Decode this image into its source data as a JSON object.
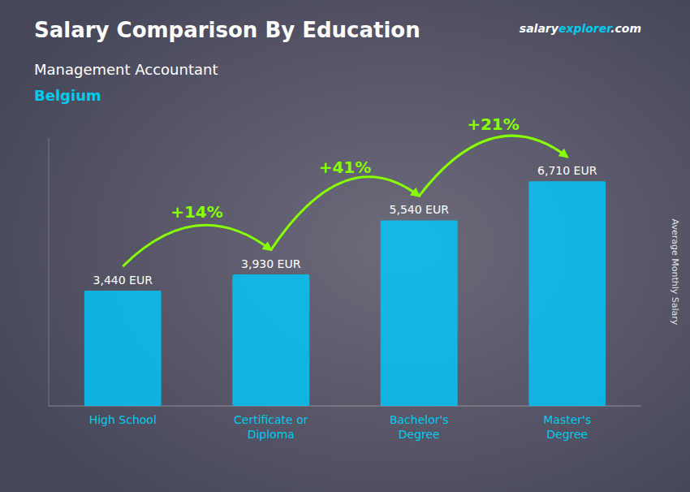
{
  "chart_data": {
    "type": "bar",
    "title": "Salary Comparison By Education",
    "subtitle": [
      "Management Accountant",
      "Belgium"
    ],
    "categories": [
      "High School",
      "Certificate or\nDiploma",
      "Bachelor's\nDegree",
      "Master's\nDegree"
    ],
    "values": [
      3440,
      3930,
      5540,
      6710
    ],
    "value_labels": [
      "3,440 EUR",
      "3,930 EUR",
      "5,540 EUR",
      "6,710 EUR"
    ],
    "data_labels": true,
    "annotations": [
      "+14%",
      "+41%",
      "+21%",
      "salaryexplorer.com"
    ],
    "color": "#00ccff",
    "ylabel": "Average Monthly Salary",
    "ylim": [
      0,
      8000
    ],
    "tick_labels": "x",
    "grid": false
  }
}
